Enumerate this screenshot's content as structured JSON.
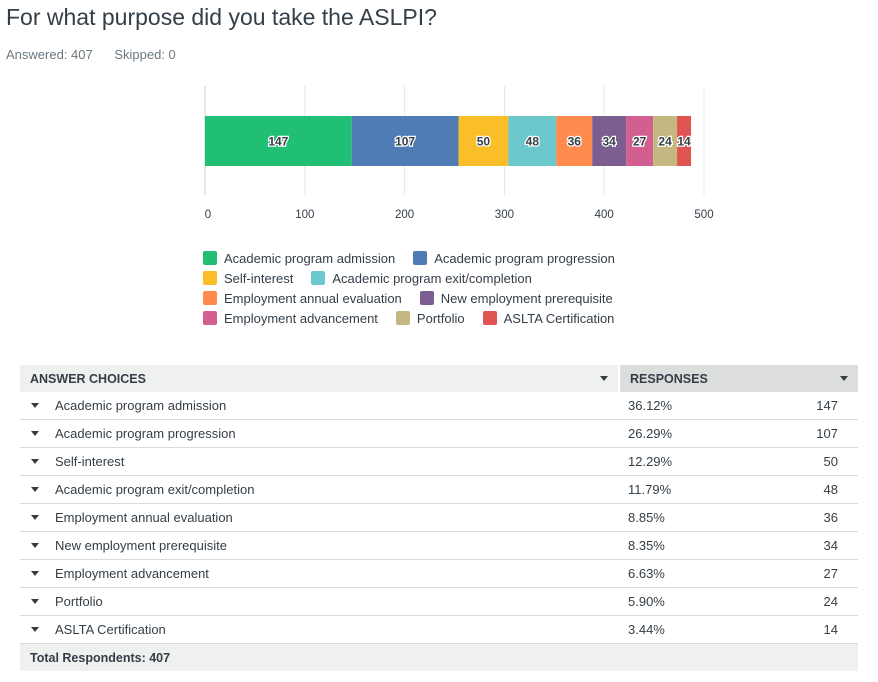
{
  "question": {
    "title": "For what purpose did you take the ASLPI?",
    "answered": "Answered: 407",
    "skipped": "Skipped: 0"
  },
  "colors": {
    "Academic program admission": "#21bf73",
    "Academic program progression": "#507cb6",
    "Self-interest": "#f9be28",
    "Academic program exit/completion": "#6bc8cd",
    "Employment annual evaluation": "#ff8b4f",
    "New employment prerequisite": "#7d5e90",
    "Employment advancement": "#d25f90",
    "Portfolio": "#c4b77f",
    "ASLTA Certification": "#e05353"
  },
  "chart_data": {
    "type": "bar",
    "orientation": "horizontal",
    "stacked": true,
    "xlim": [
      0,
      500
    ],
    "xticks": [
      0,
      100,
      200,
      300,
      400,
      500
    ],
    "legend_position": "bottom",
    "series": [
      {
        "name": "Academic program admission",
        "values": [
          147
        ]
      },
      {
        "name": "Academic program progression",
        "values": [
          107
        ]
      },
      {
        "name": "Self-interest",
        "values": [
          50
        ]
      },
      {
        "name": "Academic program exit/completion",
        "values": [
          48
        ]
      },
      {
        "name": "Employment annual evaluation",
        "values": [
          36
        ]
      },
      {
        "name": "New employment prerequisite",
        "values": [
          34
        ]
      },
      {
        "name": "Employment advancement",
        "values": [
          27
        ]
      },
      {
        "name": "Portfolio",
        "values": [
          24
        ]
      },
      {
        "name": "ASLTA Certification",
        "values": [
          14
        ]
      }
    ]
  },
  "legend_rows": [
    [
      "Academic program admission",
      "Academic program progression"
    ],
    [
      "Self-interest",
      "Academic program exit/completion"
    ],
    [
      "Employment annual evaluation",
      "New employment prerequisite"
    ],
    [
      "Employment advancement",
      "Portfolio",
      "ASLTA Certification"
    ]
  ],
  "table": {
    "headers": {
      "choices": "ANSWER CHOICES",
      "responses": "RESPONSES"
    },
    "rows": [
      {
        "choice": "Academic program admission",
        "percent": "36.12%",
        "count": "147"
      },
      {
        "choice": "Academic program progression",
        "percent": "26.29%",
        "count": "107"
      },
      {
        "choice": "Self-interest",
        "percent": "12.29%",
        "count": "50"
      },
      {
        "choice": "Academic program exit/completion",
        "percent": "11.79%",
        "count": "48"
      },
      {
        "choice": "Employment annual evaluation",
        "percent": "8.85%",
        "count": "36"
      },
      {
        "choice": "New employment prerequisite",
        "percent": "8.35%",
        "count": "34"
      },
      {
        "choice": "Employment advancement",
        "percent": "6.63%",
        "count": "27"
      },
      {
        "choice": "Portfolio",
        "percent": "5.90%",
        "count": "24"
      },
      {
        "choice": "ASLTA Certification",
        "percent": "3.44%",
        "count": "14"
      }
    ],
    "total": "Total Respondents: 407"
  }
}
